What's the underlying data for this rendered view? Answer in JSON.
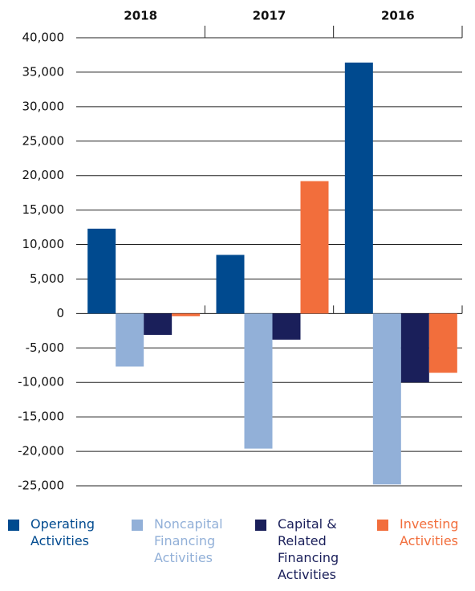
{
  "chart_data": {
    "type": "bar",
    "categories": [
      "2018",
      "2017",
      "2016"
    ],
    "series": [
      {
        "name": "Operating Activities",
        "color": "#004a8f",
        "values": [
          12300,
          8500,
          36400
        ]
      },
      {
        "name": "Noncapital Financing Activities",
        "color": "#92b0d8",
        "values": [
          -7700,
          -19600,
          -24800
        ]
      },
      {
        "name": "Capital & Related Financing Activities",
        "color": "#1a1f5a",
        "values": [
          -3100,
          -3800,
          -10000
        ]
      },
      {
        "name": "Investing Activities",
        "color": "#f26e3c",
        "values": [
          -400,
          19200,
          -8600
        ]
      }
    ],
    "ylim": [
      -25000,
      40000
    ],
    "yticks": [
      {
        "value": -25000,
        "label": "-25,000"
      },
      {
        "value": -20000,
        "label": "-20,000"
      },
      {
        "value": -15000,
        "label": "-15,000"
      },
      {
        "value": -10000,
        "label": "-10,000"
      },
      {
        "value": -5000,
        "label": "-5,000"
      },
      0,
      {
        "value": 5000,
        "label": "5,000"
      },
      {
        "value": 10000,
        "label": "10,000"
      },
      {
        "value": 15000,
        "label": "15,000"
      },
      {
        "value": 20000,
        "label": "20,000"
      },
      {
        "value": 25000,
        "label": "25,000"
      },
      {
        "value": 30000,
        "label": "30,000"
      },
      {
        "value": 35000,
        "label": "35,000"
      },
      {
        "value": 40000,
        "label": "40,000"
      }
    ],
    "grid": true
  }
}
